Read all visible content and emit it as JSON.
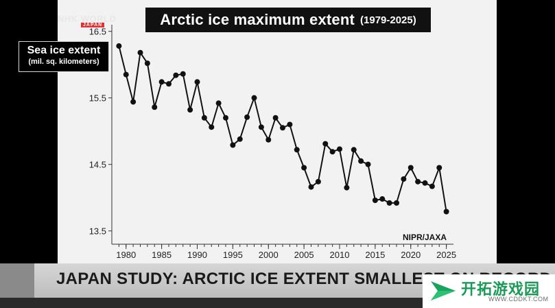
{
  "broadcaster": {
    "logo_text": "NHK WORLD",
    "logo_sub": "JAPAN"
  },
  "legend": {
    "line1": "Sea ice extent",
    "line2": "(mil. sq. kilometers)"
  },
  "ticker": {
    "headline": "JAPAN STUDY: ARCTIC ICE EXTENT SMALLEST ON RECORD"
  },
  "watermark": {
    "title": "开拓游戏园",
    "url": "WWW.CDDKT.COM"
  },
  "chart_data": {
    "type": "line",
    "title": "Arctic ice maximum extent",
    "subtitle": "(1979-2025)",
    "credit": "NIPR/JAXA",
    "xlabel": "",
    "ylabel": "Sea ice extent (mil. sq. kilometers)",
    "xlim": [
      1978,
      2026
    ],
    "ylim": [
      13.3,
      16.6
    ],
    "x_ticks": [
      1980,
      1985,
      1990,
      1995,
      2000,
      2005,
      2010,
      2015,
      2020,
      2025
    ],
    "y_ticks": [
      13.5,
      14.5,
      15.5,
      16.5
    ],
    "grid": false,
    "x": [
      1979,
      1980,
      1981,
      1982,
      1983,
      1984,
      1985,
      1986,
      1987,
      1988,
      1989,
      1990,
      1991,
      1992,
      1993,
      1994,
      1995,
      1996,
      1997,
      1998,
      1999,
      2000,
      2001,
      2002,
      2003,
      2004,
      2005,
      2006,
      2007,
      2008,
      2009,
      2010,
      2011,
      2012,
      2013,
      2014,
      2015,
      2016,
      2017,
      2018,
      2019,
      2020,
      2021,
      2022,
      2023,
      2024,
      2025
    ],
    "values": [
      16.28,
      15.85,
      15.44,
      16.18,
      16.02,
      15.36,
      15.74,
      15.71,
      15.84,
      15.86,
      15.32,
      15.74,
      15.2,
      15.06,
      15.42,
      15.2,
      14.79,
      14.88,
      15.21,
      15.5,
      15.06,
      14.87,
      15.2,
      15.05,
      15.1,
      14.72,
      14.45,
      14.16,
      14.24,
      14.81,
      14.69,
      14.73,
      14.15,
      14.72,
      14.55,
      14.5,
      13.96,
      13.98,
      13.92,
      13.92,
      14.28,
      14.45,
      14.24,
      14.22,
      14.17,
      14.45,
      13.79
    ]
  }
}
